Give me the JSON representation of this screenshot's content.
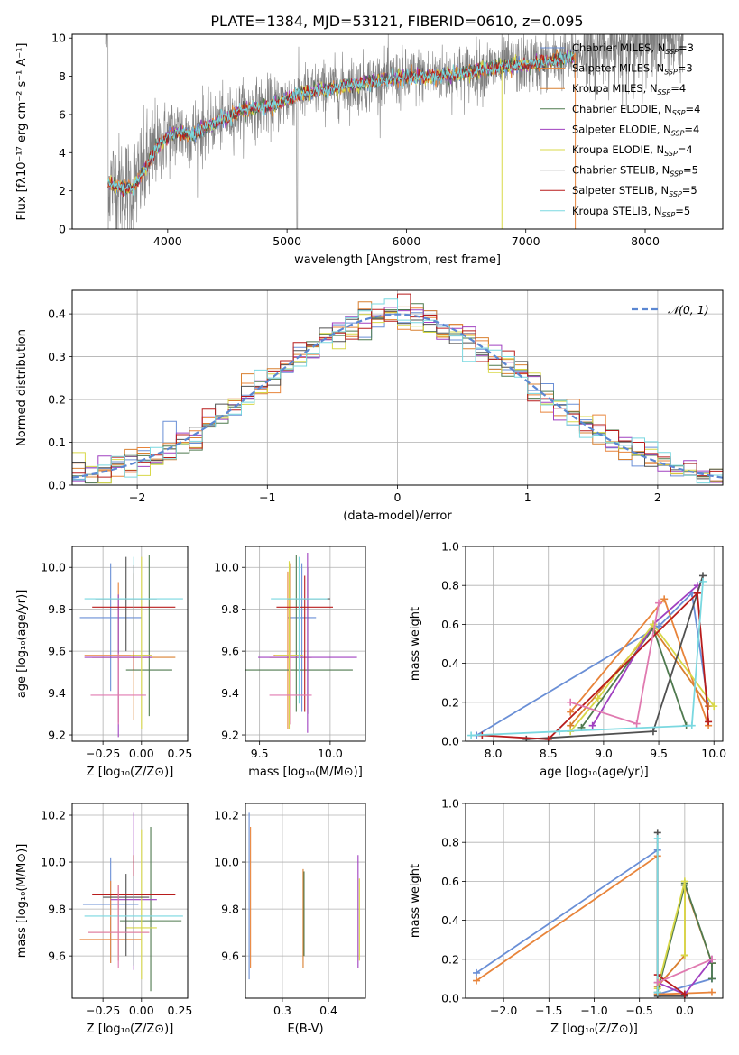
{
  "figure": {
    "title": "PLATE=1384, MJD=53121, FIBERID=0610, z=0.095"
  },
  "colors": {
    "series": [
      "#6a8fd6",
      "#e8843a",
      "#d98030",
      "#4f7a4f",
      "#a040c0",
      "#d8d848",
      "#505050",
      "#b81c1c",
      "#7ad8e0",
      "#e07ab0",
      "#88bb44"
    ],
    "data": "#808080",
    "grid": "#b0b0b0"
  },
  "chart_data": [
    {
      "id": "spectrum",
      "type": "line",
      "xlabel": "wavelength [Angstrom, rest frame]",
      "ylabel": "Flux [fλ10⁻¹⁷ erg cm⁻² s⁻¹ A⁻¹]",
      "xlim": [
        3200,
        8650
      ],
      "ylim": [
        0,
        10.2
      ],
      "xticks": [
        4000,
        5000,
        6000,
        7000,
        8000
      ],
      "yticks": [
        0,
        2,
        4,
        6,
        8,
        10
      ],
      "grid": false,
      "legend_position": "right",
      "data_anchors": [
        [
          3500,
          2.4
        ],
        [
          3600,
          2.2
        ],
        [
          3700,
          2.1
        ],
        [
          3800,
          3.0
        ],
        [
          3900,
          4.2
        ],
        [
          4000,
          4.9
        ],
        [
          4100,
          5.1
        ],
        [
          4200,
          4.9
        ],
        [
          4300,
          5.3
        ],
        [
          4400,
          5.6
        ],
        [
          4500,
          5.8
        ],
        [
          4600,
          6.2
        ],
        [
          4700,
          6.3
        ],
        [
          4800,
          6.4
        ],
        [
          4900,
          6.5
        ],
        [
          5000,
          6.8
        ],
        [
          5100,
          7.1
        ],
        [
          5200,
          7.2
        ],
        [
          5300,
          7.3
        ],
        [
          5400,
          7.4
        ],
        [
          5500,
          7.5
        ],
        [
          5600,
          7.6
        ],
        [
          5700,
          7.7
        ],
        [
          5800,
          7.8
        ],
        [
          5900,
          7.85
        ],
        [
          6000,
          7.9
        ],
        [
          6100,
          8.0
        ],
        [
          6200,
          8.0
        ],
        [
          6300,
          8.05
        ],
        [
          6400,
          8.1
        ],
        [
          6500,
          8.2
        ],
        [
          6600,
          8.3
        ],
        [
          6700,
          8.4
        ],
        [
          6800,
          8.5
        ],
        [
          6900,
          8.55
        ],
        [
          7000,
          8.6
        ],
        [
          7100,
          8.7
        ],
        [
          7200,
          8.8
        ],
        [
          7300,
          8.9
        ],
        [
          7400,
          9.0
        ],
        [
          7500,
          9.3
        ],
        [
          7700,
          9.6
        ],
        [
          7900,
          9.8
        ],
        [
          8100,
          10.0
        ],
        [
          8300,
          10.1
        ]
      ],
      "series": [
        {
          "name": "Chabrier MILES, N",
          "sub": "SSP",
          "suffix": "=3"
        },
        {
          "name": "Salpeter MILES, N",
          "sub": "SSP",
          "suffix": "=3"
        },
        {
          "name": "Kroupa MILES, N",
          "sub": "SSP",
          "suffix": "=4"
        },
        {
          "name": "Chabrier ELODIE, N",
          "sub": "SSP",
          "suffix": "=4"
        },
        {
          "name": "Salpeter ELODIE, N",
          "sub": "SSP",
          "suffix": "=4"
        },
        {
          "name": "Kroupa ELODIE, N",
          "sub": "SSP",
          "suffix": "=4"
        },
        {
          "name": "Chabrier STELIB, N",
          "sub": "SSP",
          "suffix": "=5"
        },
        {
          "name": "Salpeter STELIB, N",
          "sub": "SSP",
          "suffix": "=5"
        },
        {
          "name": "Kroupa STELIB, N",
          "sub": "SSP",
          "suffix": "=5"
        }
      ]
    },
    {
      "id": "residuals",
      "type": "line",
      "xlabel": "(data-model)/error",
      "ylabel": "Normed distribution",
      "xlim": [
        -2.5,
        2.5
      ],
      "ylim": [
        0,
        0.455
      ],
      "xticks": [
        -2,
        -1,
        0,
        1,
        2
      ],
      "yticks": [
        0.0,
        0.1,
        0.2,
        0.3,
        0.4
      ],
      "grid": true,
      "legend_position": "top-right",
      "legend_label": "𝒩(0, 1)",
      "bin_width": 0.1
    },
    {
      "id": "z_age",
      "type": "scatter",
      "xlabel": "Z [log₁₀(Z/Z⊙)]",
      "ylabel": "age  [log₁₀(age/yr)]",
      "xlim": [
        -0.45,
        0.3
      ],
      "ylim": [
        9.17,
        10.1
      ],
      "xticks": [
        -0.25,
        0.0,
        0.25
      ],
      "yticks": [
        9.2,
        9.4,
        9.6,
        9.8,
        10.0
      ],
      "grid": true,
      "points": [
        {
          "x": -0.2,
          "y": 9.76,
          "xerr": 0.2,
          "yerr": [
            0.35,
            0.26
          ]
        },
        {
          "x": -0.15,
          "y": 9.58,
          "xerr": 0.22,
          "yerr": [
            0.32,
            0.35
          ]
        },
        {
          "x": -0.05,
          "y": 9.57,
          "xerr": 0.27,
          "yerr": [
            0.3,
            0.4
          ]
        },
        {
          "x": 0.05,
          "y": 9.51,
          "xerr": 0.15,
          "yerr": [
            0.22,
            0.55
          ]
        },
        {
          "x": -0.15,
          "y": 9.57,
          "xerr": 0.22,
          "yerr": [
            0.38,
            0.3
          ]
        },
        {
          "x": 0.0,
          "y": 9.58,
          "xerr": 0.07,
          "yerr": [
            0.35,
            0.47
          ]
        },
        {
          "x": -0.1,
          "y": 9.85,
          "xerr": 0.2,
          "yerr": [
            0.25,
            0.2
          ]
        },
        {
          "x": -0.05,
          "y": 9.81,
          "xerr": 0.27,
          "yerr": [
            0.3,
            0.2
          ]
        },
        {
          "x": -0.05,
          "y": 9.85,
          "xerr": 0.32,
          "yerr": [
            0.25,
            0.2
          ]
        },
        {
          "x": -0.15,
          "y": 9.39,
          "xerr": 0.18,
          "yerr": [
            0.14,
            0.2
          ]
        }
      ]
    },
    {
      "id": "mass_age",
      "type": "scatter",
      "xlabel": "mass [log₁₀(M/M⊙)]",
      "ylabel": "",
      "xlim": [
        9.4,
        10.25
      ],
      "ylim": [
        9.17,
        10.1
      ],
      "xticks": [
        9.5,
        10.0
      ],
      "yticks": [
        9.2,
        9.4,
        9.6,
        9.8,
        10.0
      ],
      "grid": true,
      "points": [
        {
          "x": 9.8,
          "y": 9.76,
          "xerr": 0.1,
          "yerr": [
            0.45,
            0.26
          ]
        },
        {
          "x": 9.7,
          "y": 9.58,
          "xerr": 0.1,
          "yerr": [
            0.35,
            0.4
          ]
        },
        {
          "x": 9.72,
          "y": 9.57,
          "xerr": 0.15,
          "yerr": [
            0.3,
            0.45
          ]
        },
        {
          "x": 9.76,
          "y": 9.51,
          "xerr": 0.4,
          "yerr": [
            0.2,
            0.55
          ]
        },
        {
          "x": 9.84,
          "y": 9.57,
          "xerr": 0.35,
          "yerr": [
            0.36,
            0.5
          ]
        },
        {
          "x": 9.71,
          "y": 9.58,
          "xerr": 0.1,
          "yerr": [
            0.35,
            0.45
          ]
        },
        {
          "x": 9.85,
          "y": 9.85,
          "xerr": 0.15,
          "yerr": [
            0.55,
            0.15
          ]
        },
        {
          "x": 9.82,
          "y": 9.81,
          "xerr": 0.2,
          "yerr": [
            0.5,
            0.15
          ]
        },
        {
          "x": 9.78,
          "y": 9.85,
          "xerr": 0.2,
          "yerr": [
            0.5,
            0.2
          ]
        },
        {
          "x": 9.72,
          "y": 9.39,
          "xerr": 0.15,
          "yerr": [
            0.14,
            0.2
          ]
        }
      ]
    },
    {
      "id": "age_weight",
      "type": "line",
      "xlabel": "age  [log₁₀(age/yr)]",
      "ylabel": "mass weight",
      "xlim": [
        7.75,
        10.08
      ],
      "ylim": [
        0.0,
        1.0
      ],
      "xticks": [
        8.0,
        8.5,
        9.0,
        9.5,
        10.0
      ],
      "yticks": [
        0.0,
        0.2,
        0.4,
        0.6,
        0.8,
        1.0
      ],
      "grid": true,
      "series": [
        {
          "points": [
            [
              7.85,
              0.03
            ],
            [
              9.5,
              0.59
            ],
            [
              9.8,
              0.76
            ],
            [
              9.95,
              0.18
            ]
          ]
        },
        {
          "points": [
            [
              8.7,
              0.15
            ],
            [
              9.55,
              0.73
            ],
            [
              9.95,
              0.08
            ]
          ]
        },
        {
          "points": [
            [
              8.7,
              0.08
            ],
            [
              9.45,
              0.58
            ],
            [
              9.95,
              0.18
            ]
          ]
        },
        {
          "points": [
            [
              8.8,
              0.07
            ],
            [
              9.45,
              0.58
            ],
            [
              9.75,
              0.08
            ]
          ]
        },
        {
          "points": [
            [
              8.9,
              0.08
            ],
            [
              9.45,
              0.6
            ],
            [
              9.85,
              0.8
            ]
          ]
        },
        {
          "points": [
            [
              8.7,
              0.05
            ],
            [
              8.95,
              0.22
            ],
            [
              9.45,
              0.6
            ],
            [
              10.0,
              0.18
            ]
          ]
        },
        {
          "points": [
            [
              8.3,
              0.01
            ],
            [
              9.45,
              0.05
            ],
            [
              9.9,
              0.85
            ]
          ]
        },
        {
          "points": [
            [
              7.9,
              0.03
            ],
            [
              8.5,
              0.01
            ],
            [
              9.85,
              0.76
            ],
            [
              9.95,
              0.1
            ]
          ]
        },
        {
          "points": [
            [
              7.8,
              0.03
            ],
            [
              8.6,
              0.05
            ],
            [
              9.8,
              0.08
            ],
            [
              9.9,
              0.82
            ]
          ]
        },
        {
          "points": [
            [
              8.7,
              0.2
            ],
            [
              9.3,
              0.09
            ],
            [
              9.5,
              0.71
            ]
          ]
        }
      ]
    },
    {
      "id": "z_mass",
      "type": "scatter",
      "xlabel": "Z [log₁₀(Z/Z⊙)]",
      "ylabel": "mass [log₁₀(M/M⊙)]",
      "xlim": [
        -0.45,
        0.3
      ],
      "ylim": [
        9.42,
        10.25
      ],
      "xticks": [
        -0.25,
        0.0,
        0.25
      ],
      "yticks": [
        9.6,
        9.8,
        10.0,
        10.2
      ],
      "grid": true,
      "points": [
        {
          "x": -0.2,
          "y": 9.82,
          "xerr": 0.18,
          "yerr": [
            0.25,
            0.2
          ]
        },
        {
          "x": -0.2,
          "y": 9.67,
          "xerr": 0.2,
          "yerr": [
            0.1,
            0.25
          ]
        },
        {
          "x": -0.15,
          "y": 9.7,
          "xerr": 0.2,
          "yerr": [
            0.12,
            0.2
          ]
        },
        {
          "x": 0.06,
          "y": 9.75,
          "xerr": 0.2,
          "yerr": [
            0.3,
            0.4
          ]
        },
        {
          "x": -0.05,
          "y": 9.84,
          "xerr": 0.15,
          "yerr": [
            0.3,
            0.37
          ]
        },
        {
          "x": 0.0,
          "y": 9.72,
          "xerr": 0.1,
          "yerr": [
            0.22,
            0.42
          ]
        },
        {
          "x": -0.1,
          "y": 9.85,
          "xerr": 0.15,
          "yerr": [
            0.25,
            0.1
          ]
        },
        {
          "x": -0.05,
          "y": 9.86,
          "xerr": 0.27,
          "yerr": [
            0.3,
            0.17
          ]
        },
        {
          "x": -0.05,
          "y": 9.77,
          "xerr": 0.32,
          "yerr": [
            0.21,
            0.17
          ]
        },
        {
          "x": -0.15,
          "y": 9.7,
          "xerr": 0.2,
          "yerr": [
            0.15,
            0.2
          ]
        }
      ]
    },
    {
      "id": "ebv_mass",
      "type": "scatter",
      "xlabel": "E(B-V)",
      "ylabel": "",
      "xlim": [
        0.22,
        0.48
      ],
      "ylim": [
        9.42,
        10.25
      ],
      "xticks": [
        0.3,
        0.4
      ],
      "yticks": [
        9.6,
        9.8,
        10.0,
        10.2
      ],
      "grid": true,
      "points": [
        {
          "x": 0.228,
          "y": 9.85,
          "xerr": 0,
          "yerr": [
            0.35,
            0.36
          ]
        },
        {
          "x": 0.231,
          "y": 9.85,
          "xerr": 0,
          "yerr": [
            0.3,
            0.3
          ]
        },
        {
          "x": 0.345,
          "y": 9.8,
          "xerr": 0,
          "yerr": [
            0.25,
            0.17
          ]
        },
        {
          "x": 0.347,
          "y": 9.75,
          "xerr": 0,
          "yerr": [
            0.15,
            0.21
          ]
        },
        {
          "x": 0.464,
          "y": 9.8,
          "xerr": 0,
          "yerr": [
            0.25,
            0.23
          ]
        },
        {
          "x": 0.467,
          "y": 9.78,
          "xerr": 0,
          "yerr": [
            0.2,
            0.15
          ]
        }
      ]
    },
    {
      "id": "z_weight",
      "type": "line",
      "xlabel": "Z [log₁₀(Z/Z⊙)]",
      "ylabel": "mass weight",
      "xlim": [
        -2.42,
        0.42
      ],
      "ylim": [
        0.0,
        1.0
      ],
      "xticks": [
        -2.0,
        -1.5,
        -1.0,
        -0.5,
        0.0
      ],
      "yticks": [
        0.0,
        0.2,
        0.4,
        0.6,
        0.8,
        1.0
      ],
      "grid": true,
      "series": [
        {
          "points": [
            [
              -2.3,
              0.13
            ],
            [
              -0.3,
              0.76
            ],
            [
              -0.3,
              0.02
            ],
            [
              0.3,
              0.1
            ],
            [
              0.3,
              0.18
            ]
          ]
        },
        {
          "points": [
            [
              -2.3,
              0.09
            ],
            [
              -0.3,
              0.73
            ],
            [
              -0.3,
              0.02
            ],
            [
              0.3,
              0.03
            ]
          ]
        },
        {
          "points": [
            [
              -0.3,
              0.06
            ],
            [
              0.0,
              0.22
            ],
            [
              0.0,
              0.58
            ],
            [
              0.3,
              0.18
            ]
          ]
        },
        {
          "points": [
            [
              -0.3,
              0.03
            ],
            [
              0.0,
              0.58
            ],
            [
              0.0,
              0.59
            ],
            [
              0.3,
              0.18
            ],
            [
              0.3,
              0.1
            ]
          ]
        },
        {
          "points": [
            [
              -0.3,
              0.08
            ],
            [
              0.0,
              0.02
            ],
            [
              0.3,
              0.2
            ]
          ]
        },
        {
          "points": [
            [
              -0.3,
              0.05
            ],
            [
              0.0,
              0.6
            ],
            [
              0.0,
              0.22
            ]
          ]
        },
        {
          "points": [
            [
              -0.3,
              0.85
            ],
            [
              -0.3,
              0.01
            ],
            [
              0.0,
              0.01
            ]
          ]
        },
        {
          "points": [
            [
              -0.3,
              0.12
            ],
            [
              0.0,
              0.02
            ]
          ]
        },
        {
          "points": [
            [
              -0.3,
              0.82
            ],
            [
              -0.3,
              0.03
            ]
          ]
        },
        {
          "points": [
            [
              -0.3,
              0.08
            ],
            [
              0.3,
              0.2
            ]
          ]
        }
      ]
    }
  ]
}
